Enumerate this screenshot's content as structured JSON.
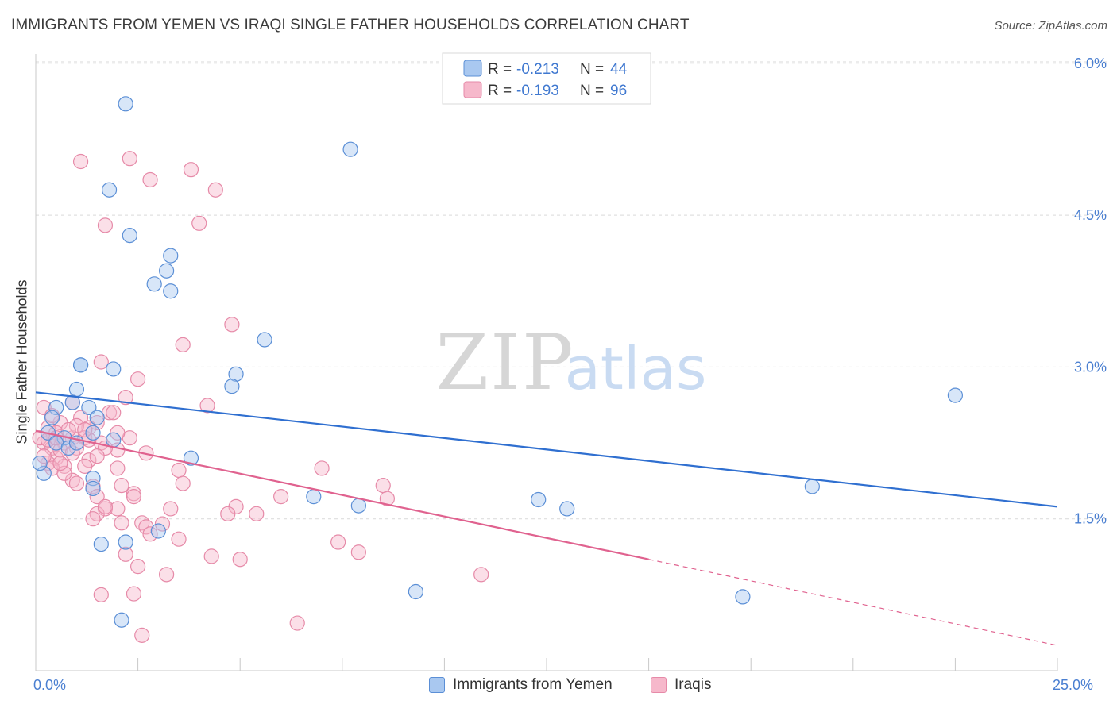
{
  "header": {
    "title": "IMMIGRANTS FROM YEMEN VS IRAQI SINGLE FATHER HOUSEHOLDS CORRELATION CHART",
    "source": "Source: ZipAtlas.com"
  },
  "watermark": {
    "zip": "ZIP",
    "atlas": "atlas"
  },
  "legend": {
    "rows": [
      {
        "r_label": "R =",
        "r_value": "-0.213",
        "n_label": "N =",
        "n_value": "44"
      },
      {
        "r_label": "R =",
        "r_value": "-0.193",
        "n_label": "N =",
        "n_value": "96"
      }
    ]
  },
  "bottom_legend": {
    "series1": "Immigrants from Yemen",
    "series2": "Iraqis"
  },
  "colors": {
    "blue_fill": "#a9c8f0",
    "blue_stroke": "#5b8fd6",
    "blue_line": "#2f6fd0",
    "pink_fill": "#f6b8cb",
    "pink_stroke": "#e68aa8",
    "pink_line": "#e0628f",
    "tick_text": "#4a7fd1",
    "grid": "#d9d9d9"
  },
  "chart_data": {
    "type": "scatter",
    "title": "IMMIGRANTS FROM YEMEN VS IRAQI SINGLE FATHER HOUSEHOLDS CORRELATION CHART",
    "xlabel": "",
    "ylabel": "Single Father Households",
    "xlim": [
      0,
      25
    ],
    "ylim": [
      0,
      6.2
    ],
    "x_tick_labels": [
      "0.0%",
      "25.0%"
    ],
    "y_ticks": [
      1.5,
      3.0,
      4.5,
      6.0
    ],
    "y_tick_labels": [
      "1.5%",
      "3.0%",
      "4.5%",
      "6.0%"
    ],
    "grid": true,
    "legend_position": "top-center",
    "series": [
      {
        "name": "Immigrants from Yemen",
        "r": -0.213,
        "n": 44,
        "trend": {
          "x0": 0,
          "y0": 2.75,
          "x1": 25,
          "y1": 1.62
        },
        "points": [
          [
            2.2,
            5.6
          ],
          [
            7.7,
            5.15
          ],
          [
            1.8,
            4.75
          ],
          [
            2.3,
            4.3
          ],
          [
            3.3,
            4.1
          ],
          [
            3.2,
            3.95
          ],
          [
            2.9,
            3.82
          ],
          [
            3.3,
            3.75
          ],
          [
            5.6,
            3.27
          ],
          [
            1.1,
            3.02
          ],
          [
            1.1,
            3.02
          ],
          [
            1.9,
            2.98
          ],
          [
            4.9,
            2.93
          ],
          [
            4.8,
            2.81
          ],
          [
            1.0,
            2.78
          ],
          [
            0.5,
            2.6
          ],
          [
            1.3,
            2.6
          ],
          [
            0.4,
            2.5
          ],
          [
            1.5,
            2.5
          ],
          [
            0.3,
            2.35
          ],
          [
            1.4,
            2.35
          ],
          [
            0.7,
            2.3
          ],
          [
            1.9,
            2.28
          ],
          [
            0.5,
            2.25
          ],
          [
            0.8,
            2.2
          ],
          [
            1.0,
            2.25
          ],
          [
            3.8,
            2.1
          ],
          [
            0.2,
            1.95
          ],
          [
            0.1,
            2.05
          ],
          [
            1.4,
            1.9
          ],
          [
            1.4,
            1.8
          ],
          [
            6.8,
            1.72
          ],
          [
            7.9,
            1.63
          ],
          [
            12.3,
            1.69
          ],
          [
            13.0,
            1.6
          ],
          [
            19.0,
            1.82
          ],
          [
            22.5,
            2.72
          ],
          [
            2.2,
            1.27
          ],
          [
            1.6,
            1.25
          ],
          [
            3.0,
            1.38
          ],
          [
            9.3,
            0.78
          ],
          [
            17.3,
            0.73
          ],
          [
            2.1,
            0.5
          ],
          [
            0.9,
            2.65
          ]
        ]
      },
      {
        "name": "Iraqis",
        "r": -0.193,
        "n": 96,
        "trend": {
          "x0": 0,
          "y0": 2.37,
          "x1": 15,
          "y1": 1.1,
          "dash_x1": 25,
          "dash_y1": 0.25
        },
        "points": [
          [
            1.1,
            5.03
          ],
          [
            2.3,
            5.06
          ],
          [
            3.8,
            4.95
          ],
          [
            2.8,
            4.85
          ],
          [
            4.4,
            4.75
          ],
          [
            1.7,
            4.4
          ],
          [
            4.0,
            4.42
          ],
          [
            4.8,
            3.42
          ],
          [
            3.6,
            3.22
          ],
          [
            1.6,
            3.05
          ],
          [
            2.5,
            2.88
          ],
          [
            2.2,
            2.7
          ],
          [
            0.2,
            2.6
          ],
          [
            1.8,
            2.55
          ],
          [
            4.2,
            2.62
          ],
          [
            0.9,
            2.65
          ],
          [
            1.1,
            2.5
          ],
          [
            1.5,
            2.45
          ],
          [
            0.6,
            2.45
          ],
          [
            1.3,
            2.4
          ],
          [
            0.3,
            2.4
          ],
          [
            0.5,
            2.35
          ],
          [
            0.9,
            2.3
          ],
          [
            1.2,
            2.3
          ],
          [
            2.3,
            2.3
          ],
          [
            0.2,
            2.25
          ],
          [
            0.7,
            2.25
          ],
          [
            1.6,
            2.25
          ],
          [
            0.4,
            2.2
          ],
          [
            1.0,
            2.2
          ],
          [
            2.0,
            2.18
          ],
          [
            2.7,
            2.15
          ],
          [
            0.5,
            2.1
          ],
          [
            1.3,
            2.08
          ],
          [
            0.3,
            2.05
          ],
          [
            0.7,
            2.02
          ],
          [
            1.2,
            2.02
          ],
          [
            0.4,
            2.0
          ],
          [
            2.0,
            2.0
          ],
          [
            7.0,
            2.0
          ],
          [
            3.5,
            1.98
          ],
          [
            0.9,
            1.88
          ],
          [
            3.6,
            1.85
          ],
          [
            2.1,
            1.83
          ],
          [
            8.5,
            1.83
          ],
          [
            1.4,
            1.82
          ],
          [
            2.4,
            1.75
          ],
          [
            6.0,
            1.72
          ],
          [
            8.6,
            1.7
          ],
          [
            4.9,
            1.62
          ],
          [
            1.7,
            1.6
          ],
          [
            2.0,
            1.6
          ],
          [
            1.5,
            1.55
          ],
          [
            4.7,
            1.55
          ],
          [
            5.4,
            1.55
          ],
          [
            1.4,
            1.5
          ],
          [
            2.1,
            1.46
          ],
          [
            2.6,
            1.46
          ],
          [
            3.1,
            1.45
          ],
          [
            2.7,
            1.42
          ],
          [
            3.5,
            1.3
          ],
          [
            7.4,
            1.27
          ],
          [
            7.9,
            1.17
          ],
          [
            2.2,
            1.15
          ],
          [
            4.3,
            1.13
          ],
          [
            5.0,
            1.1
          ],
          [
            2.5,
            1.03
          ],
          [
            3.2,
            0.95
          ],
          [
            10.9,
            0.95
          ],
          [
            1.6,
            0.75
          ],
          [
            2.4,
            0.76
          ],
          [
            6.4,
            0.47
          ],
          [
            2.6,
            0.35
          ],
          [
            0.1,
            2.3
          ],
          [
            0.2,
            2.12
          ],
          [
            1.0,
            2.42
          ],
          [
            1.3,
            2.28
          ],
          [
            0.6,
            2.18
          ],
          [
            0.8,
            2.38
          ],
          [
            1.7,
            2.2
          ],
          [
            2.0,
            2.35
          ],
          [
            1.9,
            2.55
          ],
          [
            0.3,
            2.28
          ],
          [
            1.5,
            2.12
          ],
          [
            0.4,
            2.52
          ],
          [
            0.7,
            1.95
          ],
          [
            1.0,
            1.85
          ],
          [
            1.5,
            1.72
          ],
          [
            2.4,
            1.72
          ],
          [
            1.2,
            2.38
          ],
          [
            0.5,
            2.3
          ],
          [
            0.9,
            2.15
          ],
          [
            1.7,
            1.62
          ],
          [
            2.8,
            1.35
          ],
          [
            3.3,
            1.6
          ],
          [
            0.6,
            2.05
          ]
        ]
      }
    ]
  }
}
